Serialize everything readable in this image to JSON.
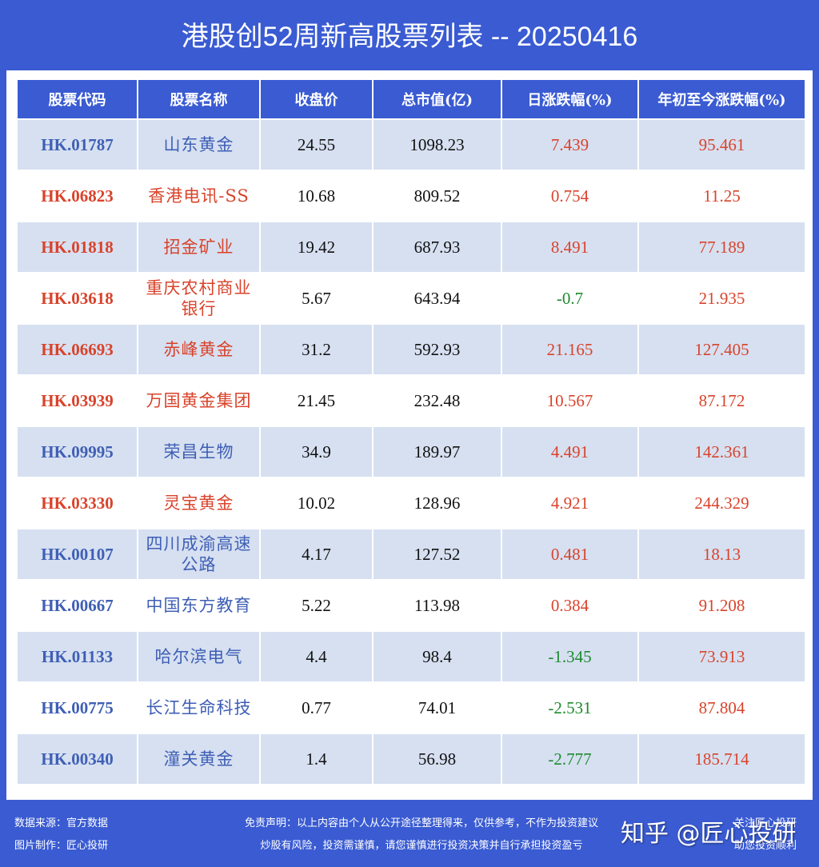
{
  "title": "港股创52周新高股票列表 -- 20250416",
  "colors": {
    "background": "#3a5bd2",
    "header_bg": "#3a5bd2",
    "alt_row_bg": "#d6e0f1",
    "code_blue": "#3f5fb5",
    "code_red": "#d9432b",
    "up_red": "#d9432b",
    "down_green": "#1e8a2e"
  },
  "table": {
    "headers": [
      "股票代码",
      "股票名称",
      "收盘价",
      "总市值(亿)",
      "日涨跌幅(%)",
      "年初至今涨跌幅(%)"
    ],
    "rows": [
      {
        "code": "HK.01787",
        "name": "山东黄金",
        "close": "24.55",
        "mcap": "1098.23",
        "day": "7.439",
        "ytd": "95.461",
        "highlight": "blue"
      },
      {
        "code": "HK.06823",
        "name": "香港电讯-SS",
        "close": "10.68",
        "mcap": "809.52",
        "day": "0.754",
        "ytd": "11.25",
        "highlight": "red"
      },
      {
        "code": "HK.01818",
        "name": "招金矿业",
        "close": "19.42",
        "mcap": "687.93",
        "day": "8.491",
        "ytd": "77.189",
        "highlight": "red"
      },
      {
        "code": "HK.03618",
        "name": "重庆农村商业银行",
        "close": "5.67",
        "mcap": "643.94",
        "day": "-0.7",
        "ytd": "21.935",
        "highlight": "red"
      },
      {
        "code": "HK.06693",
        "name": "赤峰黄金",
        "close": "31.2",
        "mcap": "592.93",
        "day": "21.165",
        "ytd": "127.405",
        "highlight": "red"
      },
      {
        "code": "HK.03939",
        "name": "万国黄金集团",
        "close": "21.45",
        "mcap": "232.48",
        "day": "10.567",
        "ytd": "87.172",
        "highlight": "red"
      },
      {
        "code": "HK.09995",
        "name": "荣昌生物",
        "close": "34.9",
        "mcap": "189.97",
        "day": "4.491",
        "ytd": "142.361",
        "highlight": "blue"
      },
      {
        "code": "HK.03330",
        "name": "灵宝黄金",
        "close": "10.02",
        "mcap": "128.96",
        "day": "4.921",
        "ytd": "244.329",
        "highlight": "red"
      },
      {
        "code": "HK.00107",
        "name": "四川成渝高速公路",
        "close": "4.17",
        "mcap": "127.52",
        "day": "0.481",
        "ytd": "18.13",
        "highlight": "blue"
      },
      {
        "code": "HK.00667",
        "name": "中国东方教育",
        "close": "5.22",
        "mcap": "113.98",
        "day": "0.384",
        "ytd": "91.208",
        "highlight": "blue"
      },
      {
        "code": "HK.01133",
        "name": "哈尔滨电气",
        "close": "4.4",
        "mcap": "98.4",
        "day": "-1.345",
        "ytd": "73.913",
        "highlight": "blue"
      },
      {
        "code": "HK.00775",
        "name": "长江生命科技",
        "close": "0.77",
        "mcap": "74.01",
        "day": "-2.531",
        "ytd": "87.804",
        "highlight": "blue"
      },
      {
        "code": "HK.00340",
        "name": "潼关黄金",
        "close": "1.4",
        "mcap": "56.98",
        "day": "-2.777",
        "ytd": "185.714",
        "highlight": "blue"
      }
    ]
  },
  "footer": {
    "source": "数据来源：官方数据",
    "maker": "图片制作：匠心投研",
    "disclaimer_1": "免责声明：以上内容由个人从公开途径整理得来，仅供参考，不作为投资建议",
    "disclaimer_2": "炒股有风险，投资需谨慎，请您谨慎进行投资决策并自行承担投资盈亏",
    "follow_1": "关注匠心投研",
    "follow_2": "助您投资顺利"
  },
  "watermark": "知乎 @匠心投研"
}
